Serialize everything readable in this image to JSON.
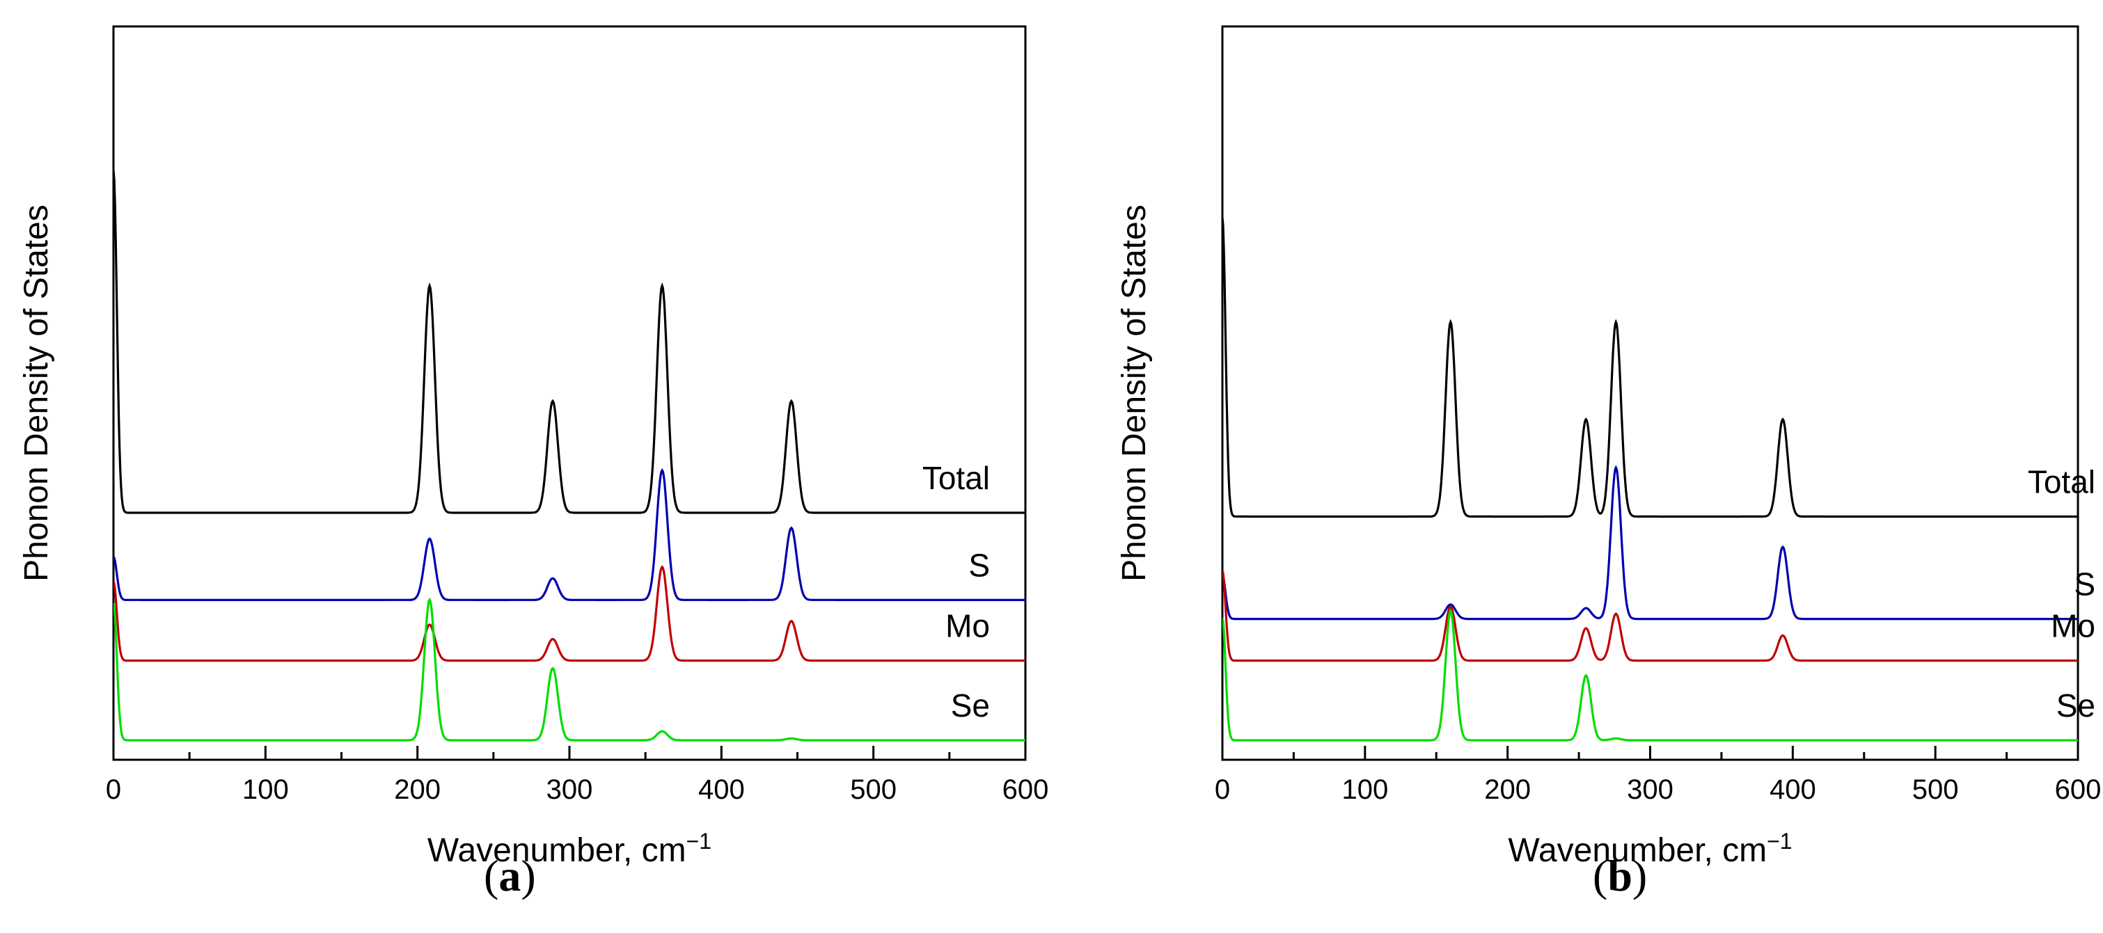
{
  "chart_data": [
    {
      "type": "line",
      "panel_label": "a",
      "title": "",
      "xlabel": "Wavenumber, cm",
      "xlabel_superscript": "−1",
      "ylabel": "Phonon Density of States",
      "xlim": [
        0,
        600
      ],
      "xticks": [
        "0",
        "100",
        "200",
        "300",
        "400",
        "500",
        "600"
      ],
      "yticks_shown": false,
      "series": [
        {
          "name": "Total",
          "color": "#000000",
          "offset": 3.0,
          "scale": 0.95,
          "peaks": [
            [
              0,
              9.5,
              2.2
            ],
            [
              208,
              6.3,
              3.5
            ],
            [
              289,
              3.1,
              3.5
            ],
            [
              361,
              6.3,
              3.5
            ],
            [
              446,
              3.1,
              3.5
            ]
          ]
        },
        {
          "name": "S",
          "color": "#0000b0",
          "offset": 1.85,
          "scale": 0.95,
          "peaks": [
            [
              0,
              1.2,
              2.2
            ],
            [
              208,
              1.7,
              3.5
            ],
            [
              289,
              0.6,
              3.5
            ],
            [
              361,
              3.6,
              3.5
            ],
            [
              446,
              2.0,
              3.5
            ]
          ]
        },
        {
          "name": "Mo",
          "color": "#c00000",
          "offset": 1.05,
          "scale": 0.95,
          "peaks": [
            [
              0,
              2.2,
              2.2
            ],
            [
              208,
              1.0,
              3.5
            ],
            [
              289,
              0.6,
              3.5
            ],
            [
              361,
              2.6,
              3.5
            ],
            [
              446,
              1.1,
              3.5
            ]
          ]
        },
        {
          "name": "Se",
          "color": "#00dd00",
          "offset": 0.0,
          "scale": 0.95,
          "peaks": [
            [
              0,
              3.8,
              2.2
            ],
            [
              208,
              3.9,
              3.5
            ],
            [
              289,
              2.0,
              3.5
            ],
            [
              361,
              0.25,
              3.5
            ],
            [
              446,
              0.05,
              3.5
            ]
          ]
        }
      ]
    },
    {
      "type": "line",
      "panel_label": "b",
      "title": "",
      "xlabel": "Wavenumber, cm",
      "xlabel_superscript": "−1",
      "ylabel": "Phonon Density of States",
      "xlim": [
        0,
        600
      ],
      "xticks": [
        "0",
        "100",
        "200",
        "300",
        "400",
        "500",
        "600"
      ],
      "yticks_shown": false,
      "series": [
        {
          "name": "Total",
          "color": "#000000",
          "offset": 2.95,
          "scale": 0.95,
          "peaks": [
            [
              0,
              8.3,
              2.2
            ],
            [
              160,
              5.4,
              3.5
            ],
            [
              255,
              2.7,
              3.5
            ],
            [
              276,
              5.4,
              3.5
            ],
            [
              393,
              2.7,
              3.5
            ]
          ]
        },
        {
          "name": "S",
          "color": "#0000b0",
          "offset": 1.6,
          "scale": 0.95,
          "peaks": [
            [
              0,
              1.2,
              2.2
            ],
            [
              160,
              0.4,
              3.5
            ],
            [
              255,
              0.3,
              3.5
            ],
            [
              276,
              4.2,
              3.5
            ],
            [
              393,
              2.0,
              3.5
            ]
          ]
        },
        {
          "name": "Mo",
          "color": "#c00000",
          "offset": 1.05,
          "scale": 0.95,
          "peaks": [
            [
              0,
              2.5,
              2.2
            ],
            [
              160,
              1.5,
              3.5
            ],
            [
              255,
              0.9,
              3.5
            ],
            [
              276,
              1.3,
              3.5
            ],
            [
              393,
              0.7,
              3.5
            ]
          ]
        },
        {
          "name": "Se",
          "color": "#00dd00",
          "offset": 0.0,
          "scale": 0.95,
          "peaks": [
            [
              0,
              3.4,
              2.2
            ],
            [
              160,
              3.6,
              3.5
            ],
            [
              255,
              1.8,
              3.5
            ],
            [
              276,
              0.05,
              3.5
            ]
          ]
        }
      ]
    }
  ]
}
